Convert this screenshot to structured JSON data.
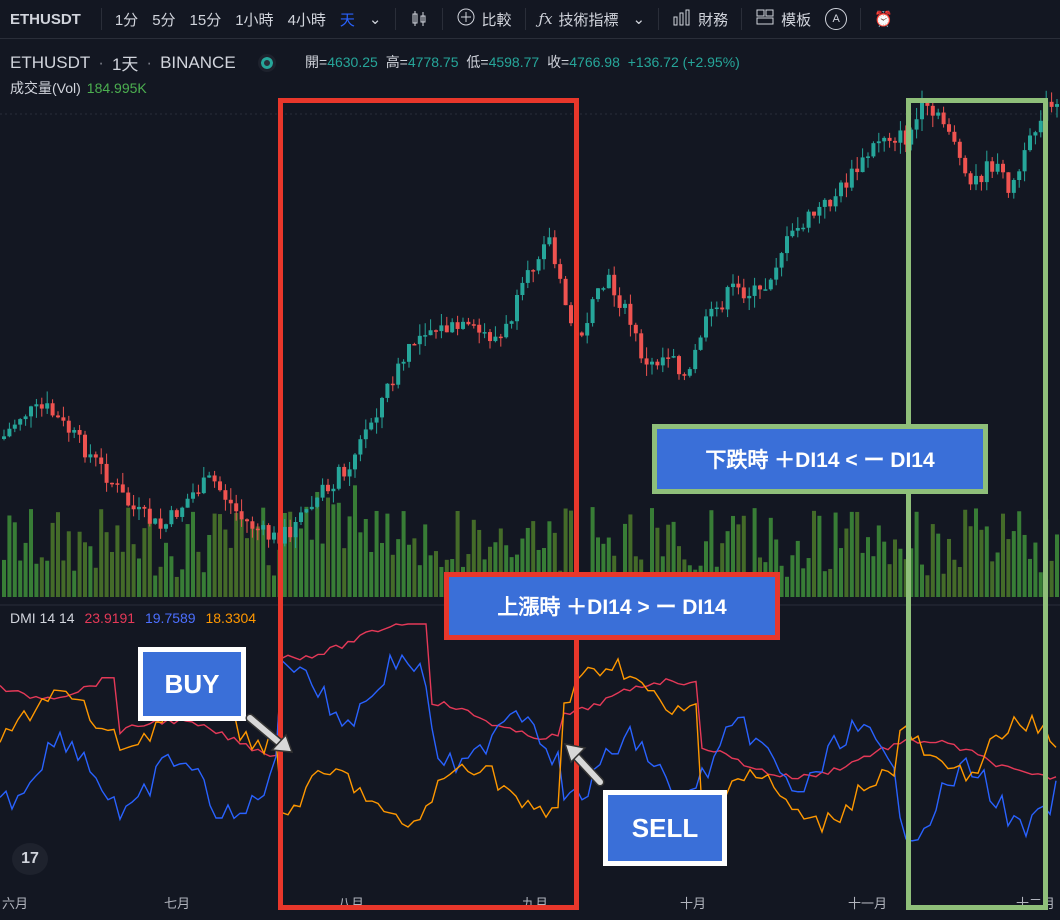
{
  "toolbar": {
    "symbol": "ETHUSDT",
    "intervals": [
      "1分",
      "5分",
      "15分",
      "1小時",
      "4小時",
      "天"
    ],
    "active_interval": "天",
    "compare_label": "比較",
    "indicators_label": "技術指標",
    "financials_label": "財務",
    "templates_label": "模板",
    "alert_label": "A"
  },
  "legend": {
    "symbol": "ETHUSDT",
    "interval": "1天",
    "exchange": "BINANCE",
    "open_key": "開=",
    "open": "4630.25",
    "high_key": "高=",
    "high": "4778.75",
    "low_key": "低=",
    "low": "4598.77",
    "close_key": "收=",
    "close": "4766.98",
    "change": "+136.72 (+2.95%)"
  },
  "volume": {
    "label": "成交量(Vol)",
    "value": "184.995K"
  },
  "dmi": {
    "label": "DMI 14 14",
    "plus_di": "19.7589",
    "minus_di": "23.9191",
    "adx": "18.3304"
  },
  "x_axis": [
    "六月",
    "七月",
    "八月",
    "九月",
    "十月",
    "十一月",
    "十二月"
  ],
  "annotations": {
    "falling": "下跌時 ＋DI14 < ー DI14",
    "rising": "上漲時 ＋DI14 > ー DI14",
    "buy": "BUY",
    "sell": "SELL"
  },
  "colors": {
    "up": "#26a69a",
    "down": "#ef5350",
    "vol_up": "#4caf50",
    "vol_down": "#4caf50",
    "plus_di": "#2962ff",
    "minus_di": "#e53958",
    "adx": "#ff9800",
    "red_box": "#e8372b",
    "green_box": "#8fbf7a",
    "callout": "#3a6fd8"
  },
  "chart_data": {
    "type": "line",
    "x": [
      "六月",
      "七月",
      "八月",
      "九月",
      "十月",
      "十一月",
      "十二月"
    ],
    "series": [
      {
        "name": "ETHUSDT",
        "values": [
          2600,
          2300,
          1900,
          3200,
          3400,
          4300,
          4766.98
        ]
      }
    ]
  }
}
